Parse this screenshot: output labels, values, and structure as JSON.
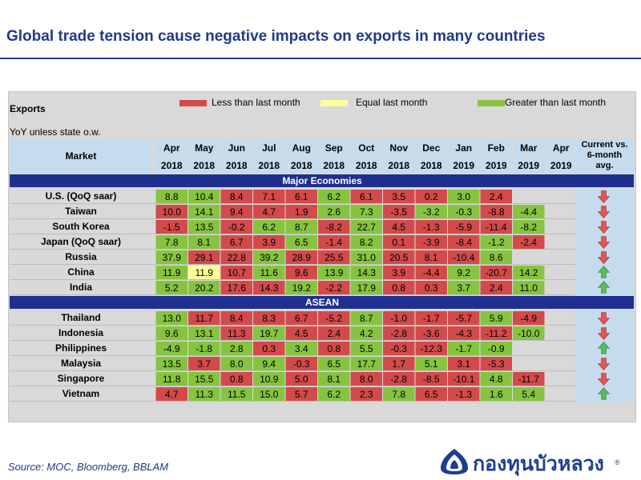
{
  "title": "Global trade tension cause negative impacts on exports in many countries",
  "exports_label": "Exports",
  "yoy_label": "YoY unless state o.w.",
  "market_header": "Market",
  "current_header": "Current vs.\n6-month\navg.",
  "legend": [
    {
      "label": "Less than last month",
      "color": "#d34a4a"
    },
    {
      "label": "Equal last month",
      "color": "#ffff99"
    },
    {
      "label": "Greater than last month",
      "color": "#86c440"
    }
  ],
  "colors": {
    "down": "#d34a4a",
    "up": "#86c440",
    "equal": "#ffff99",
    "section": "#1f2f8f",
    "header": "#c5dcef",
    "arrow_down": "#e05555",
    "arrow_up": "#5cb85c"
  },
  "source": "Source:  MOC, Bloomberg, BBLAM",
  "logo_text": "กองทุนบัวหลวง",
  "logo_mark": "®",
  "chart_data": {
    "type": "table",
    "months": [
      "Apr",
      "May",
      "Jun",
      "Jul",
      "Aug",
      "Sep",
      "Oct",
      "Nov",
      "Dec",
      "Jan",
      "Feb",
      "Mar",
      "Apr"
    ],
    "years": [
      "2018",
      "2018",
      "2018",
      "2018",
      "2018",
      "2018",
      "2018",
      "2018",
      "2018",
      "2019",
      "2019",
      "2019",
      "2019"
    ],
    "sections": [
      {
        "name": "Major Economies",
        "rows": [
          {
            "market": "U.S. (QoQ saar)",
            "values": [
              "8.8",
              "10.4",
              "8.4",
              "7.1",
              "6.1",
              "6.2",
              "6.1",
              "3.5",
              "0.2",
              "3.0",
              "2.4",
              "",
              ""
            ],
            "status": [
              "up",
              "up",
              "down",
              "down",
              "down",
              "up",
              "down",
              "down",
              "down",
              "up",
              "down",
              "",
              ""
            ],
            "trend": "down"
          },
          {
            "market": "Taiwan",
            "values": [
              "10.0",
              "14.1",
              "9.4",
              "4.7",
              "1.9",
              "2.6",
              "7.3",
              "-3.5",
              "-3.2",
              "-0.3",
              "-8.8",
              "-4.4",
              ""
            ],
            "status": [
              "down",
              "up",
              "down",
              "down",
              "down",
              "up",
              "up",
              "down",
              "up",
              "up",
              "down",
              "up",
              ""
            ],
            "trend": "down"
          },
          {
            "market": "South Korea",
            "values": [
              "-1.5",
              "13.5",
              "-0.2",
              "6.2",
              "8.7",
              "-8.2",
              "22.7",
              "4.5",
              "-1.3",
              "-5.9",
              "-11.4",
              "-8.2",
              ""
            ],
            "status": [
              "down",
              "up",
              "down",
              "up",
              "up",
              "down",
              "up",
              "down",
              "down",
              "down",
              "down",
              "up",
              ""
            ],
            "trend": "down"
          },
          {
            "market": "Japan (QoQ saar)",
            "values": [
              "7.8",
              "8.1",
              "6.7",
              "3.9",
              "6.5",
              "-1.4",
              "8.2",
              "0.1",
              "-3.9",
              "-8.4",
              "-1.2",
              "-2.4",
              ""
            ],
            "status": [
              "up",
              "up",
              "down",
              "down",
              "up",
              "down",
              "up",
              "down",
              "down",
              "down",
              "up",
              "down",
              ""
            ],
            "trend": "down"
          },
          {
            "market": "Russia",
            "values": [
              "37.9",
              "29.1",
              "22.8",
              "39.2",
              "28.9",
              "25.5",
              "31.0",
              "20.5",
              "8.1",
              "-10.4",
              "8.6",
              "",
              ""
            ],
            "status": [
              "up",
              "down",
              "down",
              "up",
              "down",
              "down",
              "up",
              "down",
              "down",
              "down",
              "up",
              "",
              ""
            ],
            "trend": "down"
          },
          {
            "market": "China",
            "values": [
              "11.9",
              "11.9",
              "10.7",
              "11.6",
              "9.6",
              "13.9",
              "14.3",
              "3.9",
              "-4.4",
              "9.2",
              "-20.7",
              "14.2",
              ""
            ],
            "status": [
              "up",
              "equal",
              "down",
              "up",
              "down",
              "up",
              "up",
              "down",
              "down",
              "up",
              "down",
              "up",
              ""
            ],
            "trend": "up"
          },
          {
            "market": "India",
            "values": [
              "5.2",
              "20.2",
              "17.6",
              "14.3",
              "19.2",
              "-2.2",
              "17.9",
              "0.8",
              "0.3",
              "3.7",
              "2.4",
              "11.0",
              ""
            ],
            "status": [
              "up",
              "up",
              "down",
              "down",
              "up",
              "down",
              "up",
              "down",
              "down",
              "up",
              "down",
              "up",
              ""
            ],
            "trend": "up"
          }
        ]
      },
      {
        "name": "ASEAN",
        "rows": [
          {
            "market": "Thailand",
            "values": [
              "13.0",
              "11.7",
              "8.4",
              "8.3",
              "6.7",
              "-5.2",
              "8.7",
              "-1.0",
              "-1.7",
              "-5.7",
              "5.9",
              "-4.9",
              ""
            ],
            "status": [
              "up",
              "down",
              "down",
              "down",
              "down",
              "down",
              "up",
              "down",
              "down",
              "down",
              "up",
              "down",
              ""
            ],
            "trend": "down"
          },
          {
            "market": "Indonesia",
            "values": [
              "9.6",
              "13.1",
              "11.3",
              "19.7",
              "4.5",
              "2.4",
              "4.2",
              "-2.8",
              "-3.6",
              "-4.3",
              "-11.2",
              "-10.0",
              ""
            ],
            "status": [
              "up",
              "up",
              "down",
              "up",
              "down",
              "down",
              "up",
              "down",
              "down",
              "down",
              "down",
              "up",
              ""
            ],
            "trend": "down"
          },
          {
            "market": "Philippines",
            "values": [
              "-4.9",
              "-1.8",
              "2.8",
              "0.3",
              "3.4",
              "0.8",
              "5.5",
              "-0.3",
              "-12.3",
              "-1.7",
              "-0.9",
              "",
              ""
            ],
            "status": [
              "up",
              "up",
              "up",
              "down",
              "up",
              "down",
              "up",
              "down",
              "down",
              "up",
              "up",
              "",
              ""
            ],
            "trend": "up"
          },
          {
            "market": "Malaysia",
            "values": [
              "13.5",
              "3.7",
              "8.0",
              "9.4",
              "-0.3",
              "6.5",
              "17.7",
              "1.7",
              "5.1",
              "3.1",
              "-5.3",
              "",
              ""
            ],
            "status": [
              "up",
              "down",
              "up",
              "up",
              "down",
              "up",
              "up",
              "down",
              "up",
              "down",
              "down",
              "",
              ""
            ],
            "trend": "down"
          },
          {
            "market": "Singapore",
            "values": [
              "11.8",
              "15.5",
              "0.8",
              "10.9",
              "5.0",
              "8.1",
              "8.0",
              "-2.8",
              "-8.5",
              "-10.1",
              "4.8",
              "-11.7",
              ""
            ],
            "status": [
              "up",
              "up",
              "down",
              "up",
              "down",
              "up",
              "down",
              "down",
              "down",
              "down",
              "up",
              "down",
              ""
            ],
            "trend": "down"
          },
          {
            "market": "Vietnam",
            "values": [
              "4.7",
              "11.3",
              "11.5",
              "15.0",
              "5.7",
              "6.2",
              "2.3",
              "7.8",
              "6.5",
              "-1.3",
              "1.6",
              "5.4",
              ""
            ],
            "status": [
              "down",
              "up",
              "up",
              "up",
              "down",
              "up",
              "down",
              "up",
              "down",
              "down",
              "up",
              "up",
              ""
            ],
            "trend": "up"
          }
        ]
      }
    ]
  }
}
